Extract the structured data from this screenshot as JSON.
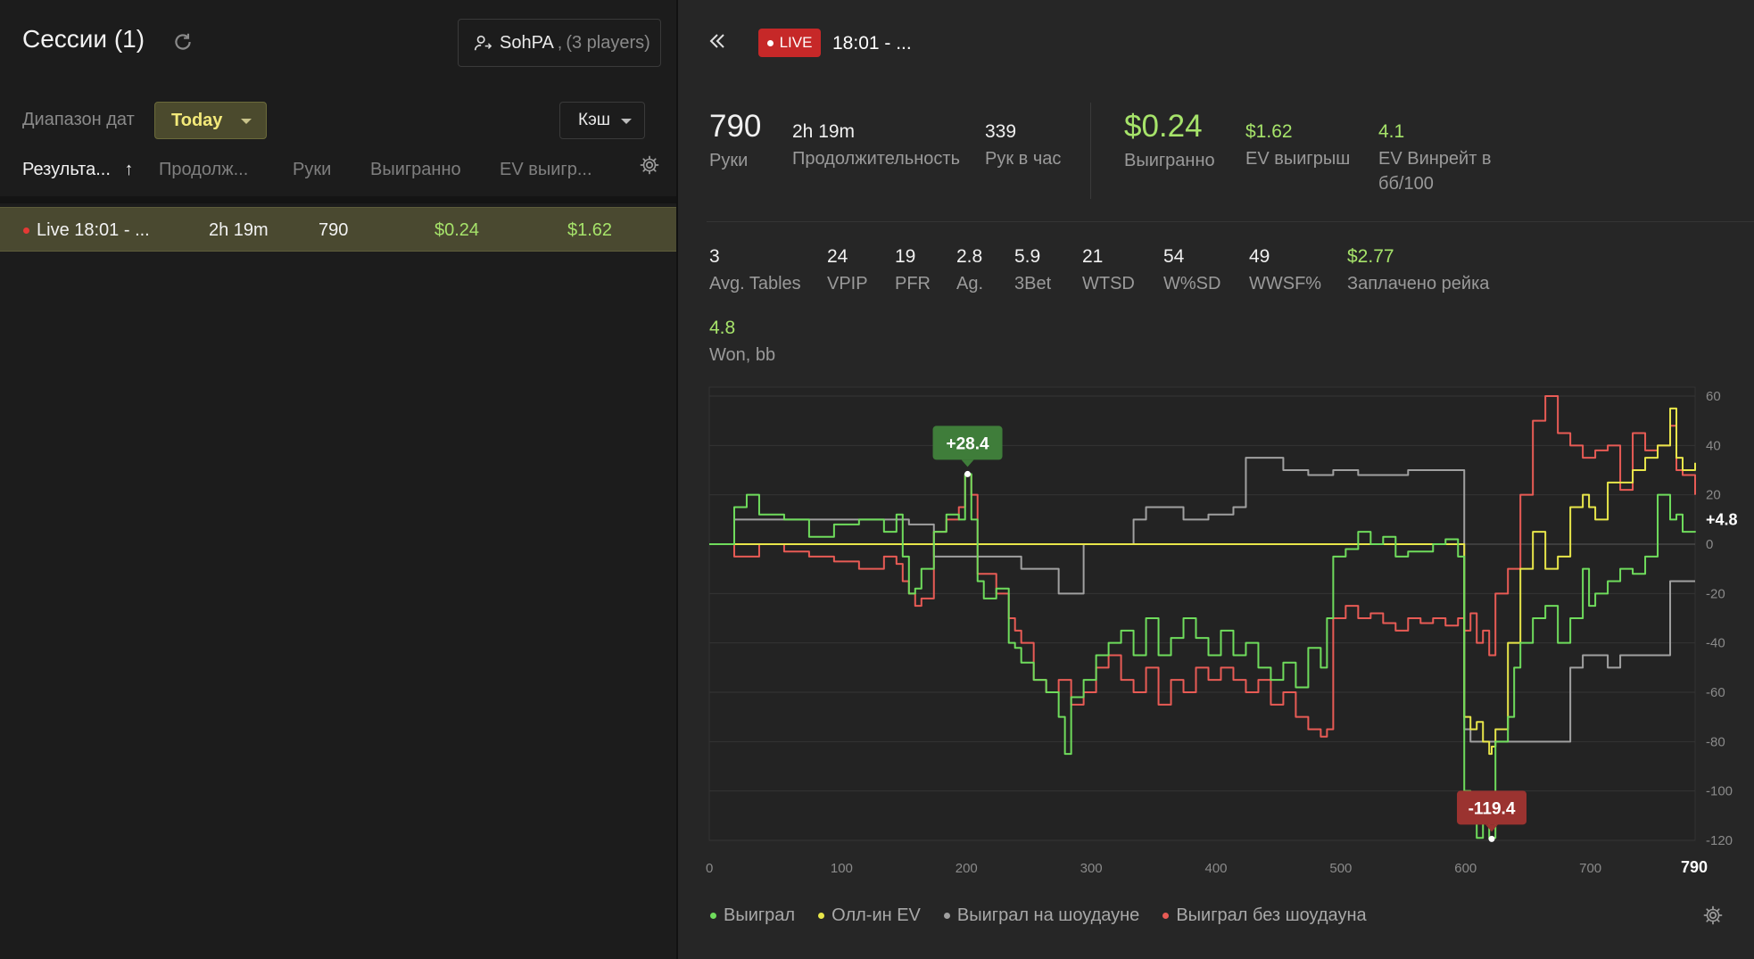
{
  "left": {
    "title": "Сессии (1)",
    "player": {
      "name": "SohPA",
      "count": "(3 players)"
    },
    "date_label": "Диапазон дат",
    "date_range": "Today",
    "game_type": "Кэш",
    "columns": [
      "Результа...",
      "Продолж...",
      "Руки",
      "Выигранно",
      "EV выигр..."
    ],
    "sort_arrow": "↑",
    "sessions": [
      {
        "name": "Live 18:01 - ...",
        "duration": "2h 19m",
        "hands": "790",
        "won": "$0.24",
        "ev_won": "$1.62"
      }
    ]
  },
  "right": {
    "live_badge": "LIVE",
    "session_time": "18:01 - ...",
    "summary": [
      {
        "value": "790",
        "label": "Руки"
      },
      {
        "value": "2h 19m",
        "label": "Продолжительность"
      },
      {
        "value": "339",
        "label": "Рук в час"
      },
      {
        "value": "$0.24",
        "label": "Выигранно"
      },
      {
        "value": "$1.62",
        "label": "EV выигрыш"
      },
      {
        "value": "4.1",
        "label": "EV Винрейт в бб/100"
      }
    ],
    "stats": [
      {
        "value": "3",
        "label": "Avg. Tables"
      },
      {
        "value": "24",
        "label": "VPIP"
      },
      {
        "value": "19",
        "label": "PFR"
      },
      {
        "value": "2.8",
        "label": "Ag."
      },
      {
        "value": "5.9",
        "label": "3Bet"
      },
      {
        "value": "21",
        "label": "WTSD"
      },
      {
        "value": "54",
        "label": "W%SD"
      },
      {
        "value": "49",
        "label": "WWSF%"
      },
      {
        "value": "$2.77",
        "label": "Заплачено рейка"
      },
      {
        "value": "4.8",
        "label": "Won, bb"
      }
    ],
    "legend": [
      "Выиграл",
      "Олл-ин EV",
      "Выиграл на шоудауне",
      "Выиграл без шоудауна"
    ]
  },
  "colors": {
    "won": "#6fdc5c",
    "allin_ev": "#e8e64a",
    "showdown": "#a0a0a0",
    "non_showdown": "#e85b55",
    "accent": "#a6e36a",
    "live": "#c62828"
  },
  "chart_data": {
    "type": "line",
    "x_ticks": [
      0,
      100,
      200,
      300,
      400,
      500,
      600,
      700
    ],
    "x_max_label": "790",
    "y_ticks": [
      60,
      40,
      20,
      0,
      -20,
      -40,
      -60,
      -80,
      -100,
      -120
    ],
    "xlim": [
      0,
      790
    ],
    "ylim": [
      -120,
      60
    ],
    "end_label": "+4.8",
    "max_marker": {
      "x": 207,
      "y": 28.4,
      "label": "+28.4"
    },
    "min_marker": {
      "x": 627,
      "y": -119.4,
      "label": "-119.4"
    },
    "series": [
      {
        "name": "Выиграл",
        "color": "#6fdc5c",
        "x": [
          0,
          20,
          30,
          40,
          60,
          80,
          100,
          120,
          140,
          150,
          155,
          160,
          165,
          170,
          180,
          190,
          200,
          205,
          210,
          215,
          220,
          230,
          240,
          245,
          250,
          260,
          270,
          280,
          285,
          290,
          300,
          310,
          320,
          330,
          340,
          350,
          360,
          370,
          380,
          390,
          400,
          410,
          420,
          430,
          440,
          450,
          460,
          470,
          480,
          490,
          495,
          500,
          510,
          520,
          530,
          540,
          550,
          560,
          580,
          590,
          600,
          605,
          610,
          615,
          620,
          625,
          627,
          630,
          640,
          645,
          650,
          660,
          670,
          680,
          690,
          700,
          705,
          710,
          720,
          730,
          740,
          750,
          760,
          770,
          775,
          780,
          790
        ],
        "y": [
          0,
          15,
          20,
          12,
          10,
          3,
          8,
          10,
          5,
          12,
          -5,
          -20,
          -18,
          -10,
          5,
          12,
          10,
          28.4,
          10,
          -15,
          -22,
          -18,
          -40,
          -42,
          -48,
          -55,
          -60,
          -70,
          -85,
          -62,
          -55,
          -45,
          -40,
          -35,
          -45,
          -30,
          -45,
          -38,
          -30,
          -38,
          -45,
          -35,
          -45,
          -40,
          -50,
          -55,
          -48,
          -58,
          -42,
          -50,
          -30,
          -5,
          -2,
          5,
          0,
          3,
          -5,
          -3,
          0,
          2,
          -5,
          -100,
          -110,
          -119,
          -112,
          -119.4,
          -119,
          -80,
          -70,
          -50,
          -40,
          -30,
          -25,
          -40,
          -30,
          -10,
          -25,
          -20,
          -15,
          -10,
          -12,
          -5,
          20,
          10,
          12,
          5,
          4.8
        ]
      },
      {
        "name": "Олл-ин EV",
        "color": "#e8e64a",
        "x": [
          0,
          600,
          605,
          610,
          615,
          620,
          625,
          627,
          630,
          640,
          650,
          660,
          670,
          680,
          690,
          700,
          705,
          710,
          720,
          730,
          740,
          750,
          760,
          770,
          775,
          780,
          790
        ],
        "y": [
          0,
          0,
          -70,
          -75,
          -72,
          -80,
          -85,
          -82,
          -75,
          -40,
          -10,
          5,
          -10,
          -5,
          15,
          20,
          15,
          10,
          25,
          25,
          30,
          35,
          40,
          55,
          35,
          30,
          33
        ]
      },
      {
        "name": "Выиграл на шоудауне",
        "color": "#a0a0a0",
        "x": [
          0,
          20,
          40,
          80,
          120,
          160,
          180,
          200,
          210,
          220,
          250,
          280,
          290,
          300,
          330,
          340,
          350,
          380,
          400,
          420,
          430,
          440,
          460,
          480,
          490,
          500,
          520,
          540,
          560,
          590,
          600,
          605,
          610,
          620,
          630,
          640,
          650,
          660,
          670,
          680,
          690,
          700,
          710,
          720,
          730,
          740,
          750,
          760,
          770,
          780,
          790
        ],
        "y": [
          0,
          10,
          10,
          10,
          10,
          8,
          -5,
          -5,
          -5,
          -5,
          -10,
          -20,
          -20,
          0,
          0,
          10,
          15,
          10,
          12,
          15,
          35,
          35,
          30,
          28,
          28,
          30,
          28,
          28,
          30,
          30,
          30,
          -75,
          -80,
          -80,
          -80,
          -80,
          -80,
          -80,
          -80,
          -80,
          -50,
          -45,
          -45,
          -50,
          -45,
          -45,
          -45,
          -45,
          -15,
          -15,
          -15
        ]
      },
      {
        "name": "Выиграл без шоудауна",
        "color": "#e85b55",
        "x": [
          0,
          20,
          40,
          60,
          80,
          100,
          120,
          140,
          150,
          155,
          160,
          165,
          170,
          180,
          190,
          200,
          205,
          210,
          215,
          220,
          230,
          240,
          245,
          250,
          260,
          270,
          280,
          290,
          300,
          310,
          320,
          330,
          340,
          350,
          360,
          370,
          380,
          390,
          400,
          410,
          420,
          430,
          440,
          450,
          460,
          470,
          480,
          490,
          495,
          500,
          510,
          520,
          530,
          540,
          550,
          560,
          570,
          580,
          590,
          600,
          605,
          610,
          615,
          620,
          625,
          630,
          640,
          650,
          660,
          670,
          680,
          690,
          700,
          710,
          720,
          730,
          740,
          750,
          760,
          770,
          775,
          780,
          790
        ],
        "y": [
          0,
          -5,
          0,
          -3,
          -5,
          -7,
          -10,
          -5,
          -8,
          -15,
          -20,
          -25,
          -22,
          5,
          10,
          15,
          28,
          20,
          -12,
          -12,
          -20,
          -30,
          -35,
          -40,
          -55,
          -60,
          -55,
          -65,
          -60,
          -50,
          -45,
          -55,
          -60,
          -50,
          -65,
          -55,
          -60,
          -50,
          -55,
          -50,
          -55,
          -60,
          -55,
          -65,
          -60,
          -70,
          -75,
          -78,
          -75,
          -30,
          -25,
          -30,
          -28,
          -32,
          -35,
          -30,
          -32,
          -30,
          -33,
          -30,
          -35,
          -28,
          -40,
          -35,
          -45,
          -20,
          -10,
          20,
          50,
          60,
          45,
          40,
          35,
          38,
          40,
          22,
          45,
          38,
          40,
          48,
          30,
          28,
          20
        ]
      }
    ]
  }
}
